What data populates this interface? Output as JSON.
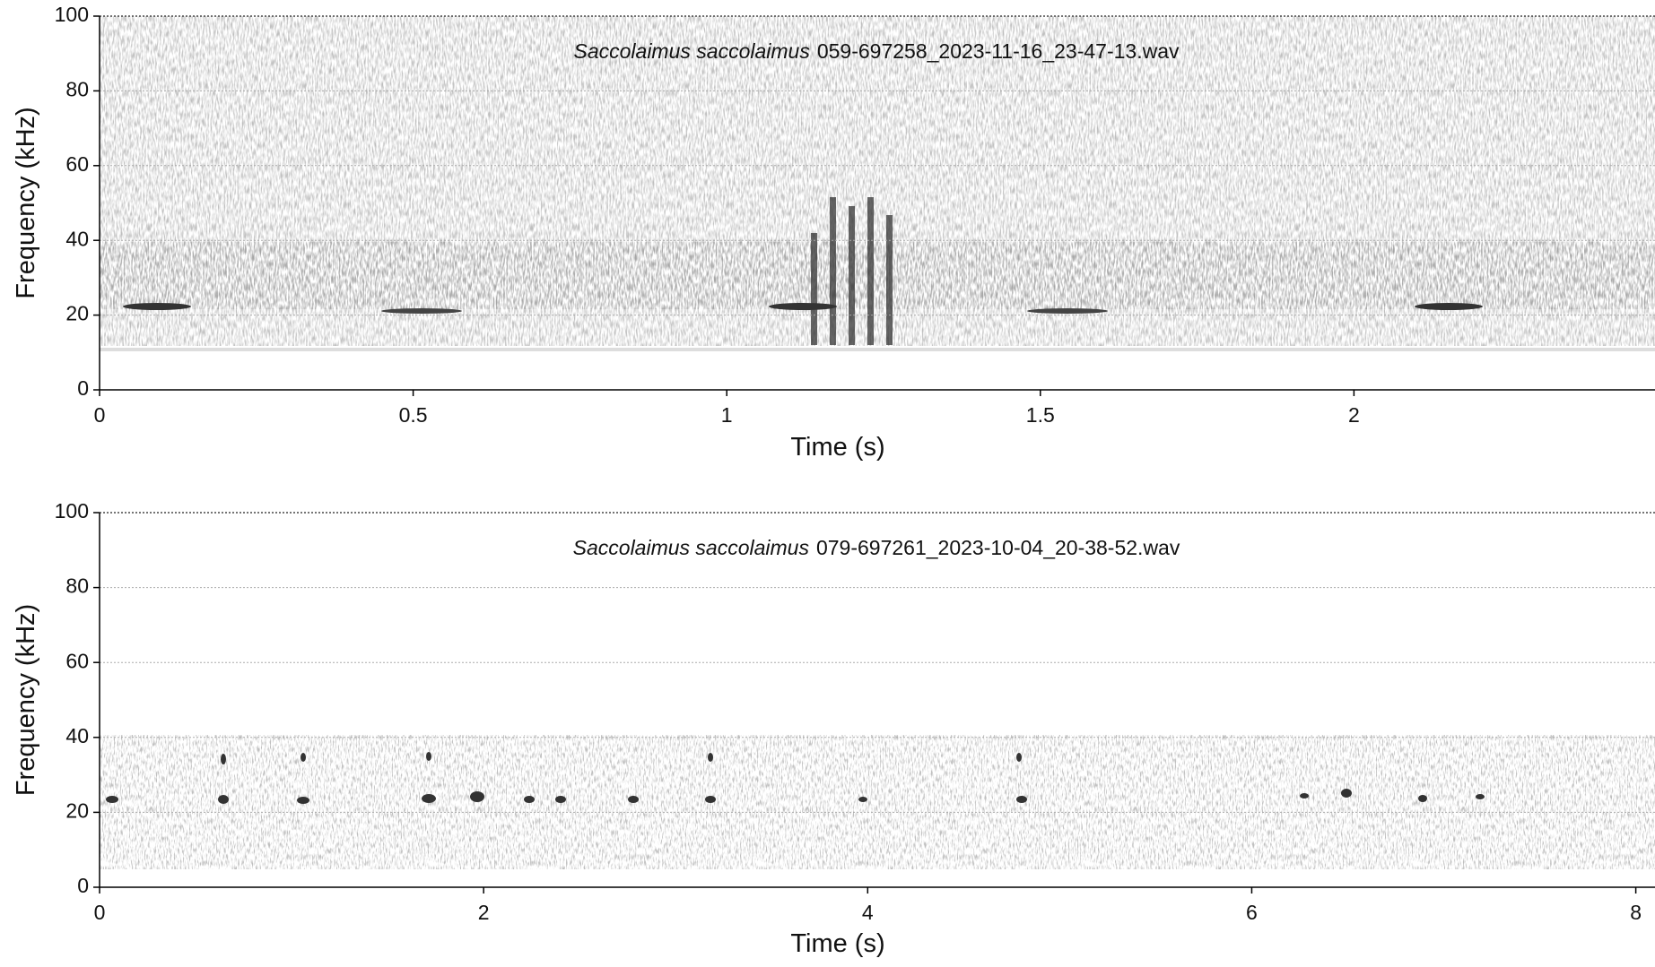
{
  "chart_data": [
    {
      "type": "spectrogram",
      "title_species": "Saccolaimus saccolaimus",
      "title_file": "059-697258_2023-11-16_23-47-13.wav",
      "x_label": "Time (s)",
      "y_label": "Frequency (kHz)",
      "xlim": [
        0,
        2.48
      ],
      "xticks": [
        0,
        0.5,
        1,
        1.5,
        2
      ],
      "ylim": [
        0,
        100
      ],
      "yticks": [
        0,
        20,
        40,
        60,
        80,
        100
      ],
      "grid": true
    },
    {
      "type": "spectrogram",
      "title_species": "Saccolaimus saccolaimus",
      "title_file": "079-697261_2023-10-04_20-38-52.wav",
      "x_label": "Time (s)",
      "y_label": "Frequency (kHz)",
      "xlim": [
        0,
        8.1
      ],
      "xticks": [
        0,
        2,
        4,
        6,
        8
      ],
      "ylim": [
        0,
        100
      ],
      "yticks": [
        0,
        20,
        40,
        60,
        80,
        100
      ],
      "grid": true
    }
  ]
}
